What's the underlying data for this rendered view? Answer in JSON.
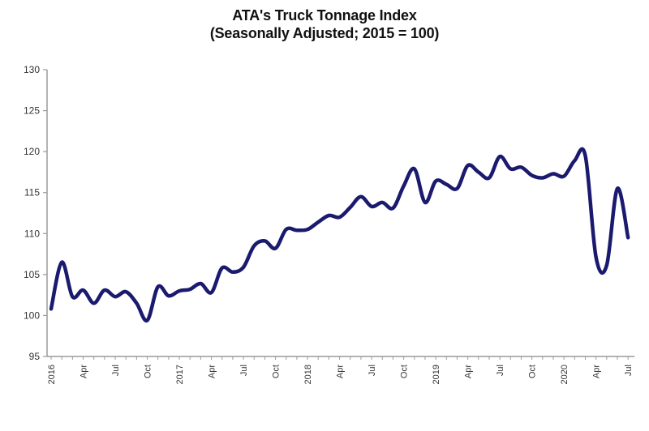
{
  "chart": {
    "title_line1": "ATA's Truck Tonnage Index",
    "title_line2": "(Seasonally Adjusted; 2015 = 100)",
    "line_color": "#1a1a6e",
    "axis_color": "#9a9a9a"
  },
  "chart_data": {
    "type": "line",
    "title": "ATA's Truck Tonnage Index (Seasonally Adjusted; 2015 = 100)",
    "xlabel": "",
    "ylabel": "",
    "ylim": [
      95,
      130
    ],
    "yticks": [
      95,
      100,
      105,
      110,
      115,
      120,
      125,
      130
    ],
    "grid": false,
    "legend": null,
    "x_tick_labels": [
      {
        "index": 0,
        "label": "2016"
      },
      {
        "index": 3,
        "label": "Apr"
      },
      {
        "index": 6,
        "label": "Jul"
      },
      {
        "index": 9,
        "label": "Oct"
      },
      {
        "index": 12,
        "label": "2017"
      },
      {
        "index": 15,
        "label": "Apr"
      },
      {
        "index": 18,
        "label": "Jul"
      },
      {
        "index": 21,
        "label": "Oct"
      },
      {
        "index": 24,
        "label": "2018"
      },
      {
        "index": 27,
        "label": "Apr"
      },
      {
        "index": 30,
        "label": "Jul"
      },
      {
        "index": 33,
        "label": "Oct"
      },
      {
        "index": 36,
        "label": "2019"
      },
      {
        "index": 39,
        "label": "Apr"
      },
      {
        "index": 42,
        "label": "Jul"
      },
      {
        "index": 45,
        "label": "Oct"
      },
      {
        "index": 48,
        "label": "2020"
      },
      {
        "index": 51,
        "label": "Apr"
      },
      {
        "index": 54,
        "label": "Jul"
      }
    ],
    "x": [
      "2016-01",
      "2016-02",
      "2016-03",
      "2016-04",
      "2016-05",
      "2016-06",
      "2016-07",
      "2016-08",
      "2016-09",
      "2016-10",
      "2016-11",
      "2016-12",
      "2017-01",
      "2017-02",
      "2017-03",
      "2017-04",
      "2017-05",
      "2017-06",
      "2017-07",
      "2017-08",
      "2017-09",
      "2017-10",
      "2017-11",
      "2017-12",
      "2018-01",
      "2018-02",
      "2018-03",
      "2018-04",
      "2018-05",
      "2018-06",
      "2018-07",
      "2018-08",
      "2018-09",
      "2018-10",
      "2018-11",
      "2018-12",
      "2019-01",
      "2019-02",
      "2019-03",
      "2019-04",
      "2019-05",
      "2019-06",
      "2019-07",
      "2019-08",
      "2019-09",
      "2019-10",
      "2019-11",
      "2019-12",
      "2020-01",
      "2020-02",
      "2020-03",
      "2020-04",
      "2020-05",
      "2020-06",
      "2020-07"
    ],
    "series": [
      {
        "name": "Truck Tonnage Index (SA)",
        "values": [
          100.8,
          106.5,
          102.3,
          103.1,
          101.5,
          103.1,
          102.3,
          102.9,
          101.5,
          99.4,
          103.5,
          102.4,
          103.0,
          103.2,
          103.9,
          102.8,
          105.8,
          105.3,
          105.9,
          108.5,
          109.1,
          108.2,
          110.5,
          110.4,
          110.5,
          111.4,
          112.2,
          112.0,
          113.2,
          114.5,
          113.3,
          113.8,
          113.1,
          115.8,
          117.9,
          113.8,
          116.4,
          116.0,
          115.5,
          118.3,
          117.5,
          116.8,
          119.4,
          117.9,
          118.1,
          117.1,
          116.8,
          117.3,
          117.0,
          118.9,
          119.5,
          107.1,
          106.1,
          115.5,
          109.5
        ]
      }
    ]
  }
}
